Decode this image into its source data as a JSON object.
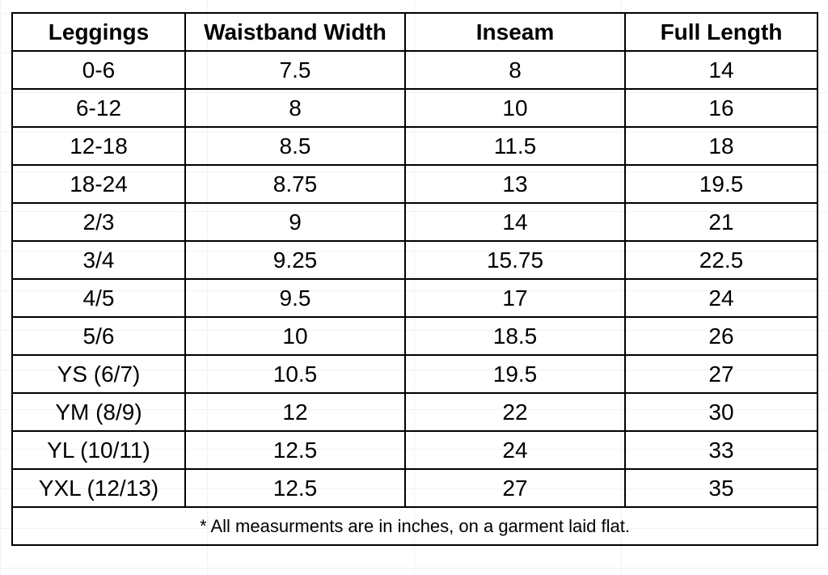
{
  "table": {
    "headers": [
      "Leggings",
      "Waistband Width",
      "Inseam",
      "Full Length"
    ],
    "rows": [
      [
        "0-6",
        "7.5",
        "8",
        "14"
      ],
      [
        "6-12",
        "8",
        "10",
        "16"
      ],
      [
        "12-18",
        "8.5",
        "11.5",
        "18"
      ],
      [
        "18-24",
        "8.75",
        "13",
        "19.5"
      ],
      [
        "2/3",
        "9",
        "14",
        "21"
      ],
      [
        "3/4",
        "9.25",
        "15.75",
        "22.5"
      ],
      [
        "4/5",
        "9.5",
        "17",
        "24"
      ],
      [
        "5/6",
        "10",
        "18.5",
        "26"
      ],
      [
        "YS (6/7)",
        "10.5",
        "19.5",
        "27"
      ],
      [
        "YM (8/9)",
        "12",
        "22",
        "30"
      ],
      [
        "YL (10/11)",
        "12.5",
        "24",
        "33"
      ],
      [
        "YXL (12/13)",
        "12.5",
        "27",
        "35"
      ]
    ],
    "footnote": "* All measurments are in inches, on a garment laid flat."
  }
}
